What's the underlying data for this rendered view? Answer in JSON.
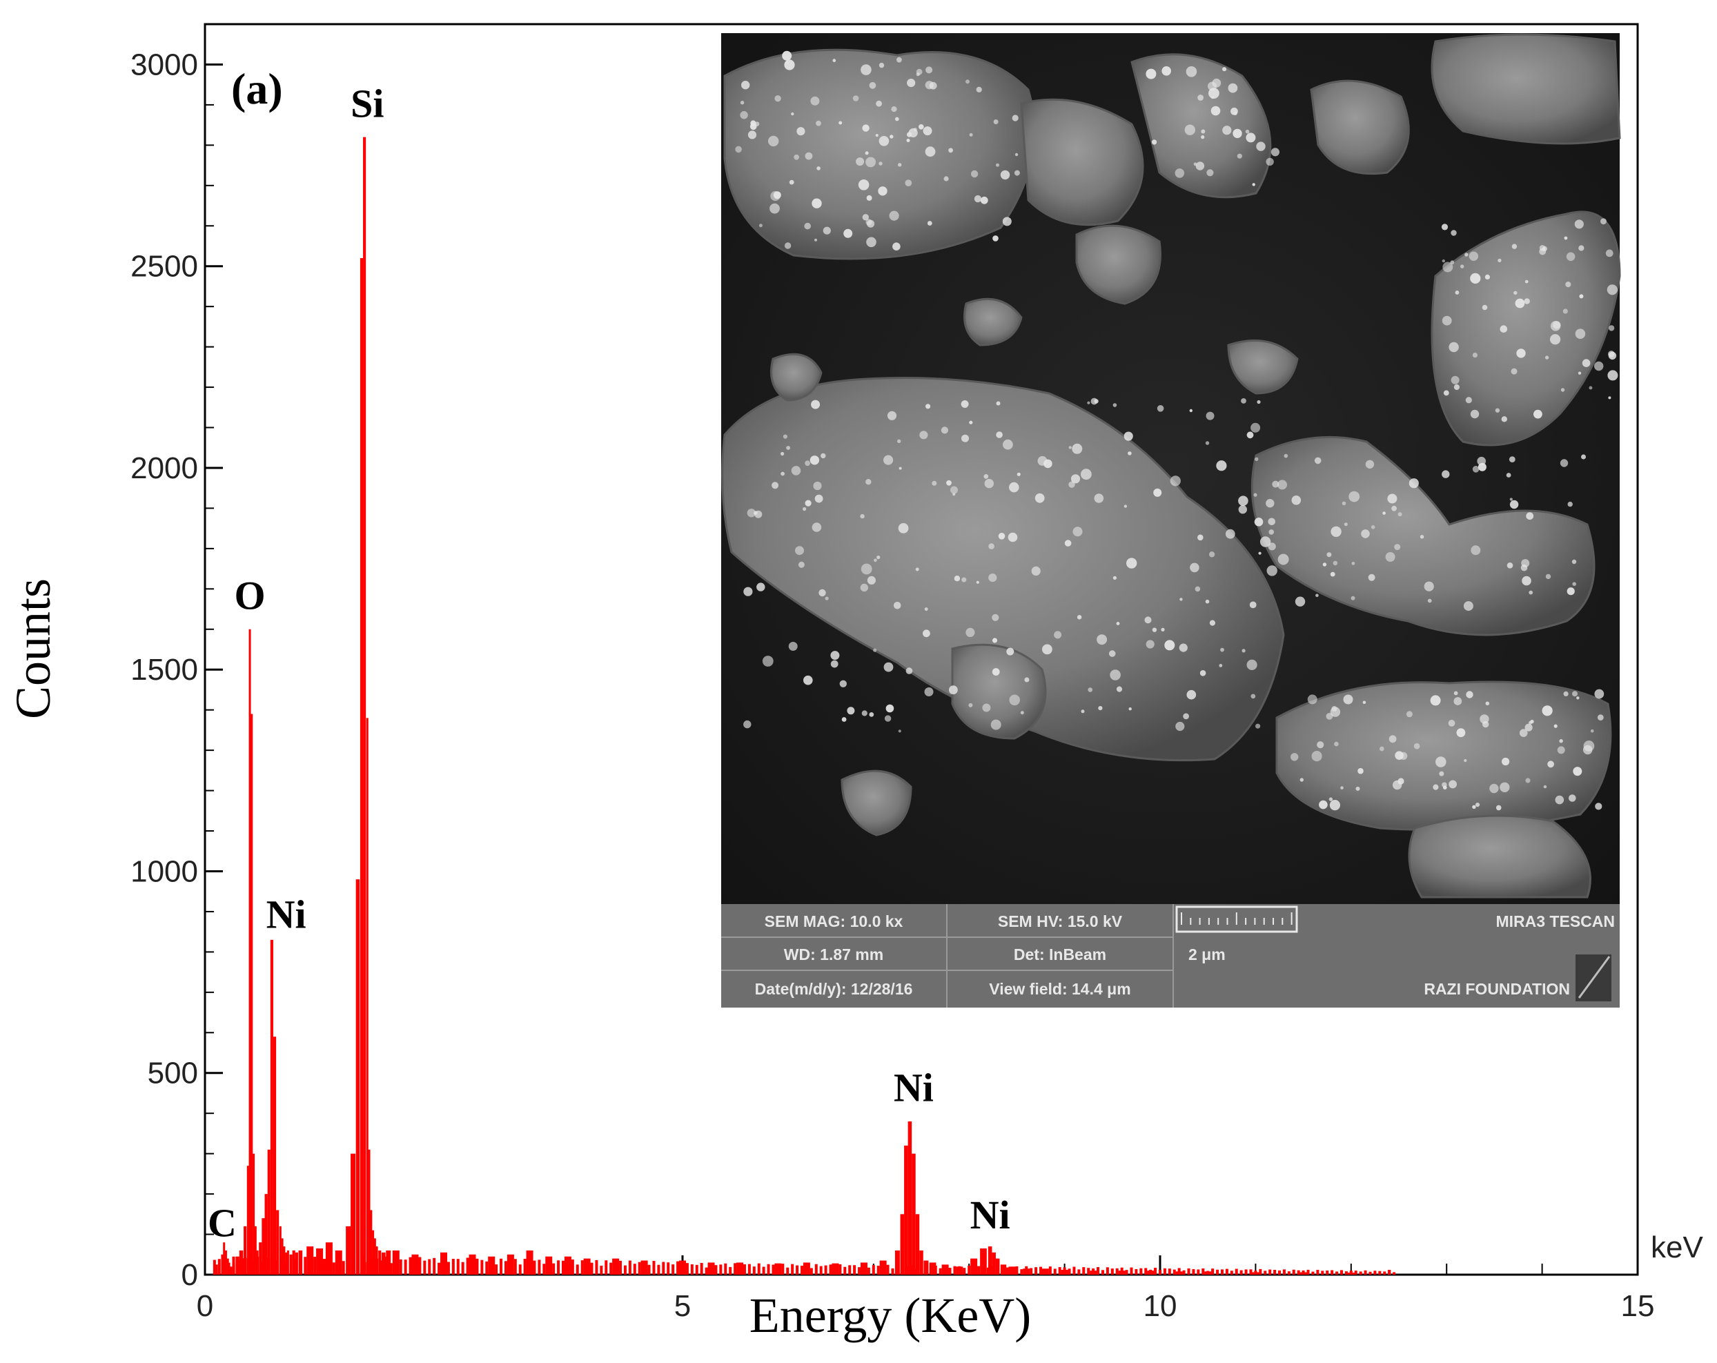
{
  "chart_data": {
    "type": "bar",
    "title": "",
    "panel_label": "(a)",
    "xlabel": "Energy (KeV)",
    "ylabel": "Counts",
    "x_unit": "keV",
    "xlim": [
      0,
      15
    ],
    "ylim": [
      0,
      3100
    ],
    "x_ticks": [
      "0",
      "5",
      "10",
      "15"
    ],
    "y_ticks": [
      "0",
      "500",
      "1000",
      "1500",
      "2000",
      "2500",
      "3000"
    ],
    "grid": false,
    "series": [
      {
        "color": "#ff0000",
        "x": [
          0.12,
          0.18,
          0.2,
          0.22,
          0.24,
          0.27,
          0.3,
          0.34,
          0.38,
          0.42,
          0.45,
          0.47,
          0.49,
          0.51,
          0.53,
          0.55,
          0.58,
          0.61,
          0.64,
          0.67,
          0.7,
          0.73,
          0.76,
          0.79,
          0.81,
          0.83,
          0.85,
          0.87,
          0.9,
          0.93,
          0.96,
          1.0,
          1.1,
          1.2,
          1.3,
          1.4,
          1.5,
          1.55,
          1.6,
          1.64,
          1.67,
          1.7,
          1.72,
          1.74,
          1.76,
          1.78,
          1.8,
          1.83,
          1.87,
          1.92,
          2.0,
          2.2,
          2.5,
          2.8,
          3.0,
          3.2,
          3.4,
          3.6,
          3.8,
          4.0,
          4.3,
          4.6,
          5.0,
          5.3,
          5.6,
          6.0,
          6.3,
          6.6,
          6.9,
          7.1,
          7.25,
          7.3,
          7.34,
          7.38,
          7.42,
          7.46,
          7.5,
          7.55,
          7.62,
          7.75,
          7.9,
          8.05,
          8.15,
          8.22,
          8.26,
          8.3,
          8.36,
          8.45,
          8.6,
          8.8,
          9.0,
          9.3,
          9.6,
          9.9,
          10.2,
          10.5,
          11.0,
          11.5,
          12.0,
          12.4
        ],
        "y": [
          25,
          50,
          80,
          60,
          40,
          20,
          30,
          45,
          60,
          120,
          270,
          1600,
          1390,
          300,
          120,
          60,
          80,
          140,
          200,
          310,
          830,
          590,
          160,
          120,
          90,
          70,
          55,
          60,
          50,
          60,
          55,
          60,
          70,
          65,
          80,
          60,
          120,
          300,
          980,
          2520,
          2820,
          1380,
          310,
          160,
          110,
          90,
          70,
          60,
          55,
          60,
          60,
          50,
          55,
          50,
          45,
          50,
          60,
          45,
          45,
          40,
          40,
          35,
          35,
          30,
          30,
          28,
          30,
          28,
          30,
          35,
          60,
          150,
          320,
          380,
          300,
          150,
          60,
          35,
          30,
          25,
          20,
          40,
          65,
          70,
          55,
          40,
          25,
          20,
          15,
          15,
          12,
          10,
          10,
          10,
          8,
          8,
          6,
          6,
          5,
          12
        ]
      }
    ],
    "annotations": [
      {
        "text": "C",
        "x": 0.18,
        "y": 95
      },
      {
        "text": "O",
        "x": 0.47,
        "y": 1650
      },
      {
        "text": "Ni",
        "x": 0.85,
        "y": 860
      },
      {
        "text": "Si",
        "x": 1.7,
        "y": 2870
      },
      {
        "text": "Ni",
        "x": 7.42,
        "y": 430
      },
      {
        "text": "Ni",
        "x": 8.22,
        "y": 115
      }
    ]
  },
  "inset": {
    "description_label": "SEM micrograph",
    "info_bar": {
      "mag": "SEM MAG: 10.0 kx",
      "hv": "SEM HV: 15.0 kV",
      "brand": "MIRA3 TESCAN",
      "wd": "WD: 1.87 mm",
      "det": "Det: InBeam",
      "scale": "2 μm",
      "date": "Date(m/d/y): 12/28/16",
      "view": "View field: 14.4 μm",
      "org": "RAZI FOUNDATION"
    }
  }
}
